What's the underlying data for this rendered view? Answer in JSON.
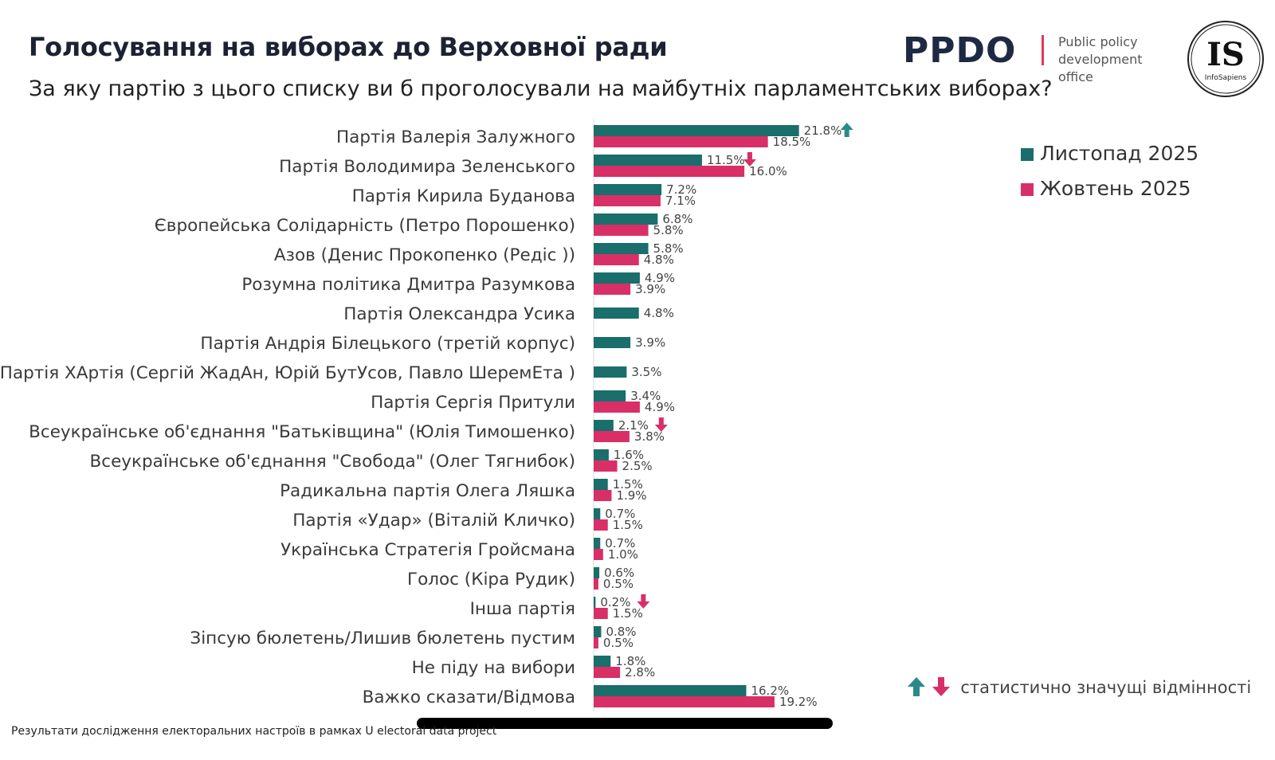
{
  "header": {
    "title": "Голосування на виборах до Верховної ради",
    "subtitle": "За яку партію з цього списку ви б проголосували на майбутніх парламентських виборах?"
  },
  "logos": {
    "ppdo_text": "PPDO",
    "ppdo_subtitle": "Public policy development office",
    "is_text": "IS",
    "is_subtext": "InfoSapiens"
  },
  "colors": {
    "nov": "#1a6e6b",
    "oct": "#d92f67",
    "up_arrow": "#2a8a8a",
    "down_arrow": "#d92f67"
  },
  "chart_data": {
    "type": "bar",
    "orientation": "horizontal",
    "value_format": "percent",
    "xlim": [
      0,
      25
    ],
    "categories": [
      "Партія Валерія Залужного",
      "Партія Володимира Зеленського",
      "Партія Кирила Буданова",
      "Європейська Солідарність (Петро Порошенко)",
      "Азов (Денис Прокопенко (Редіс ))",
      "Розумна політика Дмитра Разумкова",
      "Партія Олександра Усика",
      "Партія Андрія Білецького (третій корпус)",
      "Партія ХАртія (Сергій ЖадАн, Юрій БутУсов, Павло ШеремЕта )",
      "Партія Сергія Притули",
      "Всеукраїнське об'єднання \"Батьківщина\" (Юлія Тимошенко)",
      "Всеукраїнське об'єднання \"Свобода\" (Олег Тягнибок)",
      "Радикальна партія Олега Ляшка",
      "Партія «Удар» (Віталій Кличко)",
      "Українська Стратегія Гройсмана",
      "Голос (Кіра Рудик)",
      "Інша партія",
      "Зіпсую бюлетень/Лишив бюлетень пустим",
      "Не піду на вибори",
      "Важко сказати/Відмова"
    ],
    "series": [
      {
        "name": "Листопад 2025",
        "values": [
          21.8,
          11.5,
          7.2,
          6.8,
          5.8,
          4.9,
          4.8,
          3.9,
          3.5,
          3.4,
          2.1,
          1.6,
          1.5,
          0.7,
          0.7,
          0.6,
          0.2,
          0.8,
          1.8,
          16.2
        ]
      },
      {
        "name": "Жовтень 2025",
        "values": [
          18.5,
          16.0,
          7.1,
          5.8,
          4.8,
          3.9,
          null,
          null,
          null,
          4.9,
          3.8,
          2.5,
          1.9,
          1.5,
          1.0,
          0.5,
          1.5,
          0.5,
          2.8,
          19.2
        ]
      }
    ],
    "significance": [
      {
        "category": "Партія Валерія Залужного",
        "direction": "up"
      },
      {
        "category": "Партія Володимира Зеленського",
        "direction": "down"
      },
      {
        "category": "Всеукраїнське об'єднання \"Батьківщина\" (Юлія Тимошенко)",
        "direction": "down"
      },
      {
        "category": "Інша партія",
        "direction": "down"
      }
    ],
    "legend_position": "top-right",
    "grid": false
  },
  "significance_legend": "статистично значущі відмінності",
  "footer": "Результати дослідження електоральних настроїв в рамках U electoral data project"
}
